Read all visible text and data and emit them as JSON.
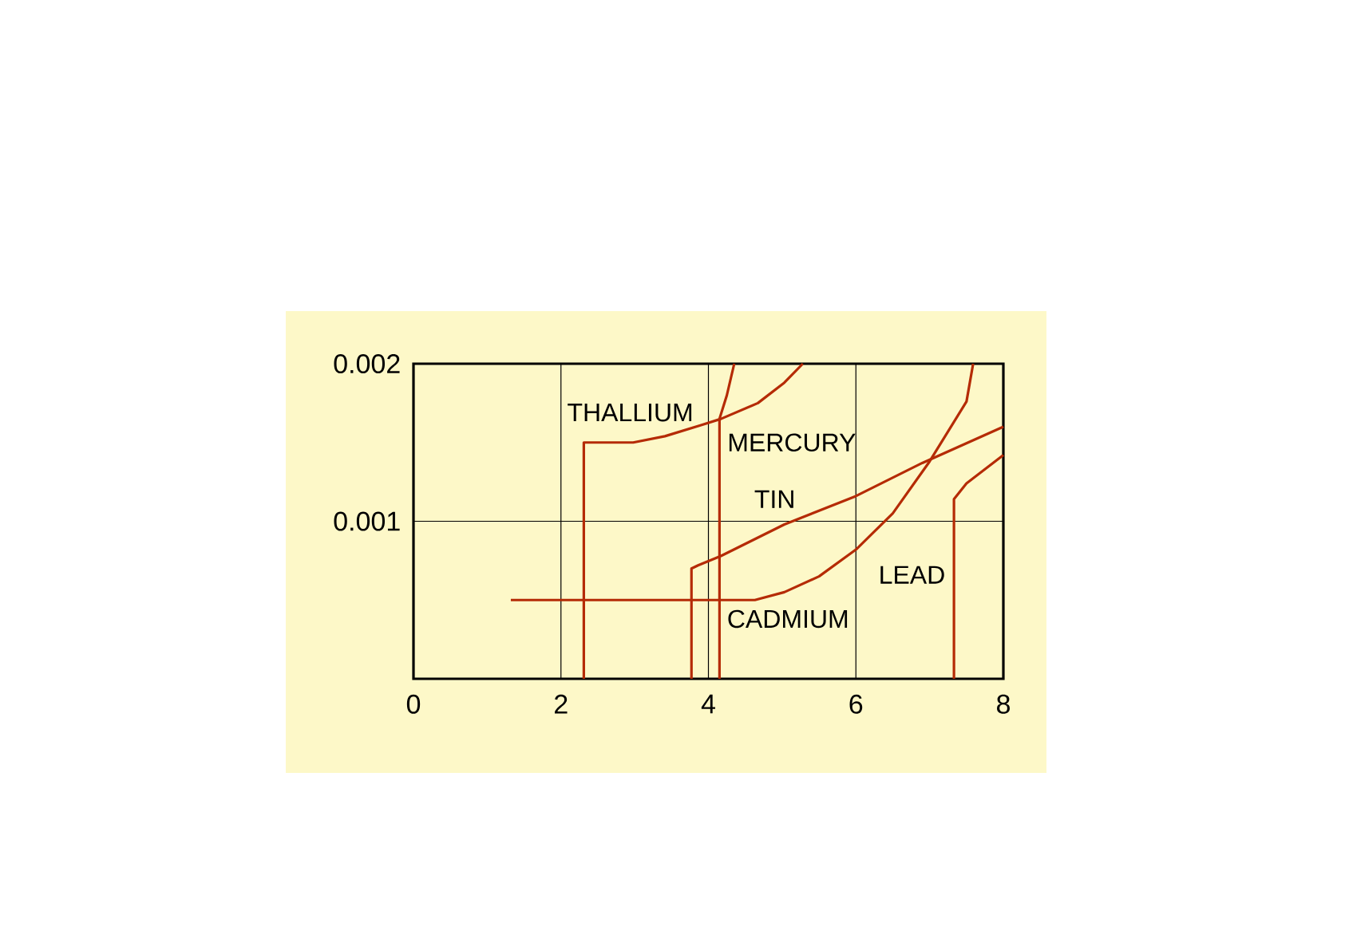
{
  "chart_data": {
    "type": "line",
    "color": "#b52b05",
    "xlim": [
      0,
      8
    ],
    "ylim": [
      0,
      0.002
    ],
    "xticks": [
      0,
      2,
      4,
      6,
      8
    ],
    "yticks": [
      0.001,
      0.002
    ],
    "grid": true,
    "line_style": "solid",
    "marker": "none",
    "series": [
      {
        "name": "THALLIUM",
        "x": [
          2.31,
          2.31,
          2.98,
          3.41,
          3.9,
          4.17,
          4.67,
          5.03,
          5.28
        ],
        "values": [
          0,
          0.0015,
          0.0015,
          0.00154,
          0.00161,
          0.00165,
          0.00175,
          0.00188,
          0.002
        ]
      },
      {
        "name": "MERCURY",
        "x": [
          4.15,
          4.15,
          4.25,
          4.35
        ],
        "values": [
          0,
          0.00165,
          0.0018,
          0.002
        ]
      },
      {
        "name": "TIN",
        "x": [
          3.77,
          3.77,
          3.86,
          4.17,
          5.03,
          6,
          6.9,
          8
        ],
        "values": [
          0,
          0.0007,
          0.00072,
          0.00078,
          0.00098,
          0.00116,
          0.00137,
          0.0016
        ]
      },
      {
        "name": "CADMIUM",
        "x": [
          1.32,
          4.63,
          5.03,
          5.5,
          6,
          6.5,
          7,
          7.5,
          7.59
        ],
        "values": [
          0.0005,
          0.0005,
          0.00055,
          0.00065,
          0.00082,
          0.00105,
          0.00138,
          0.00176,
          0.002
        ]
      },
      {
        "name": "LEAD",
        "x": [
          7.33,
          7.33,
          7.5,
          8
        ],
        "values": [
          0,
          0.00114,
          0.00124,
          0.00142
        ]
      }
    ]
  }
}
